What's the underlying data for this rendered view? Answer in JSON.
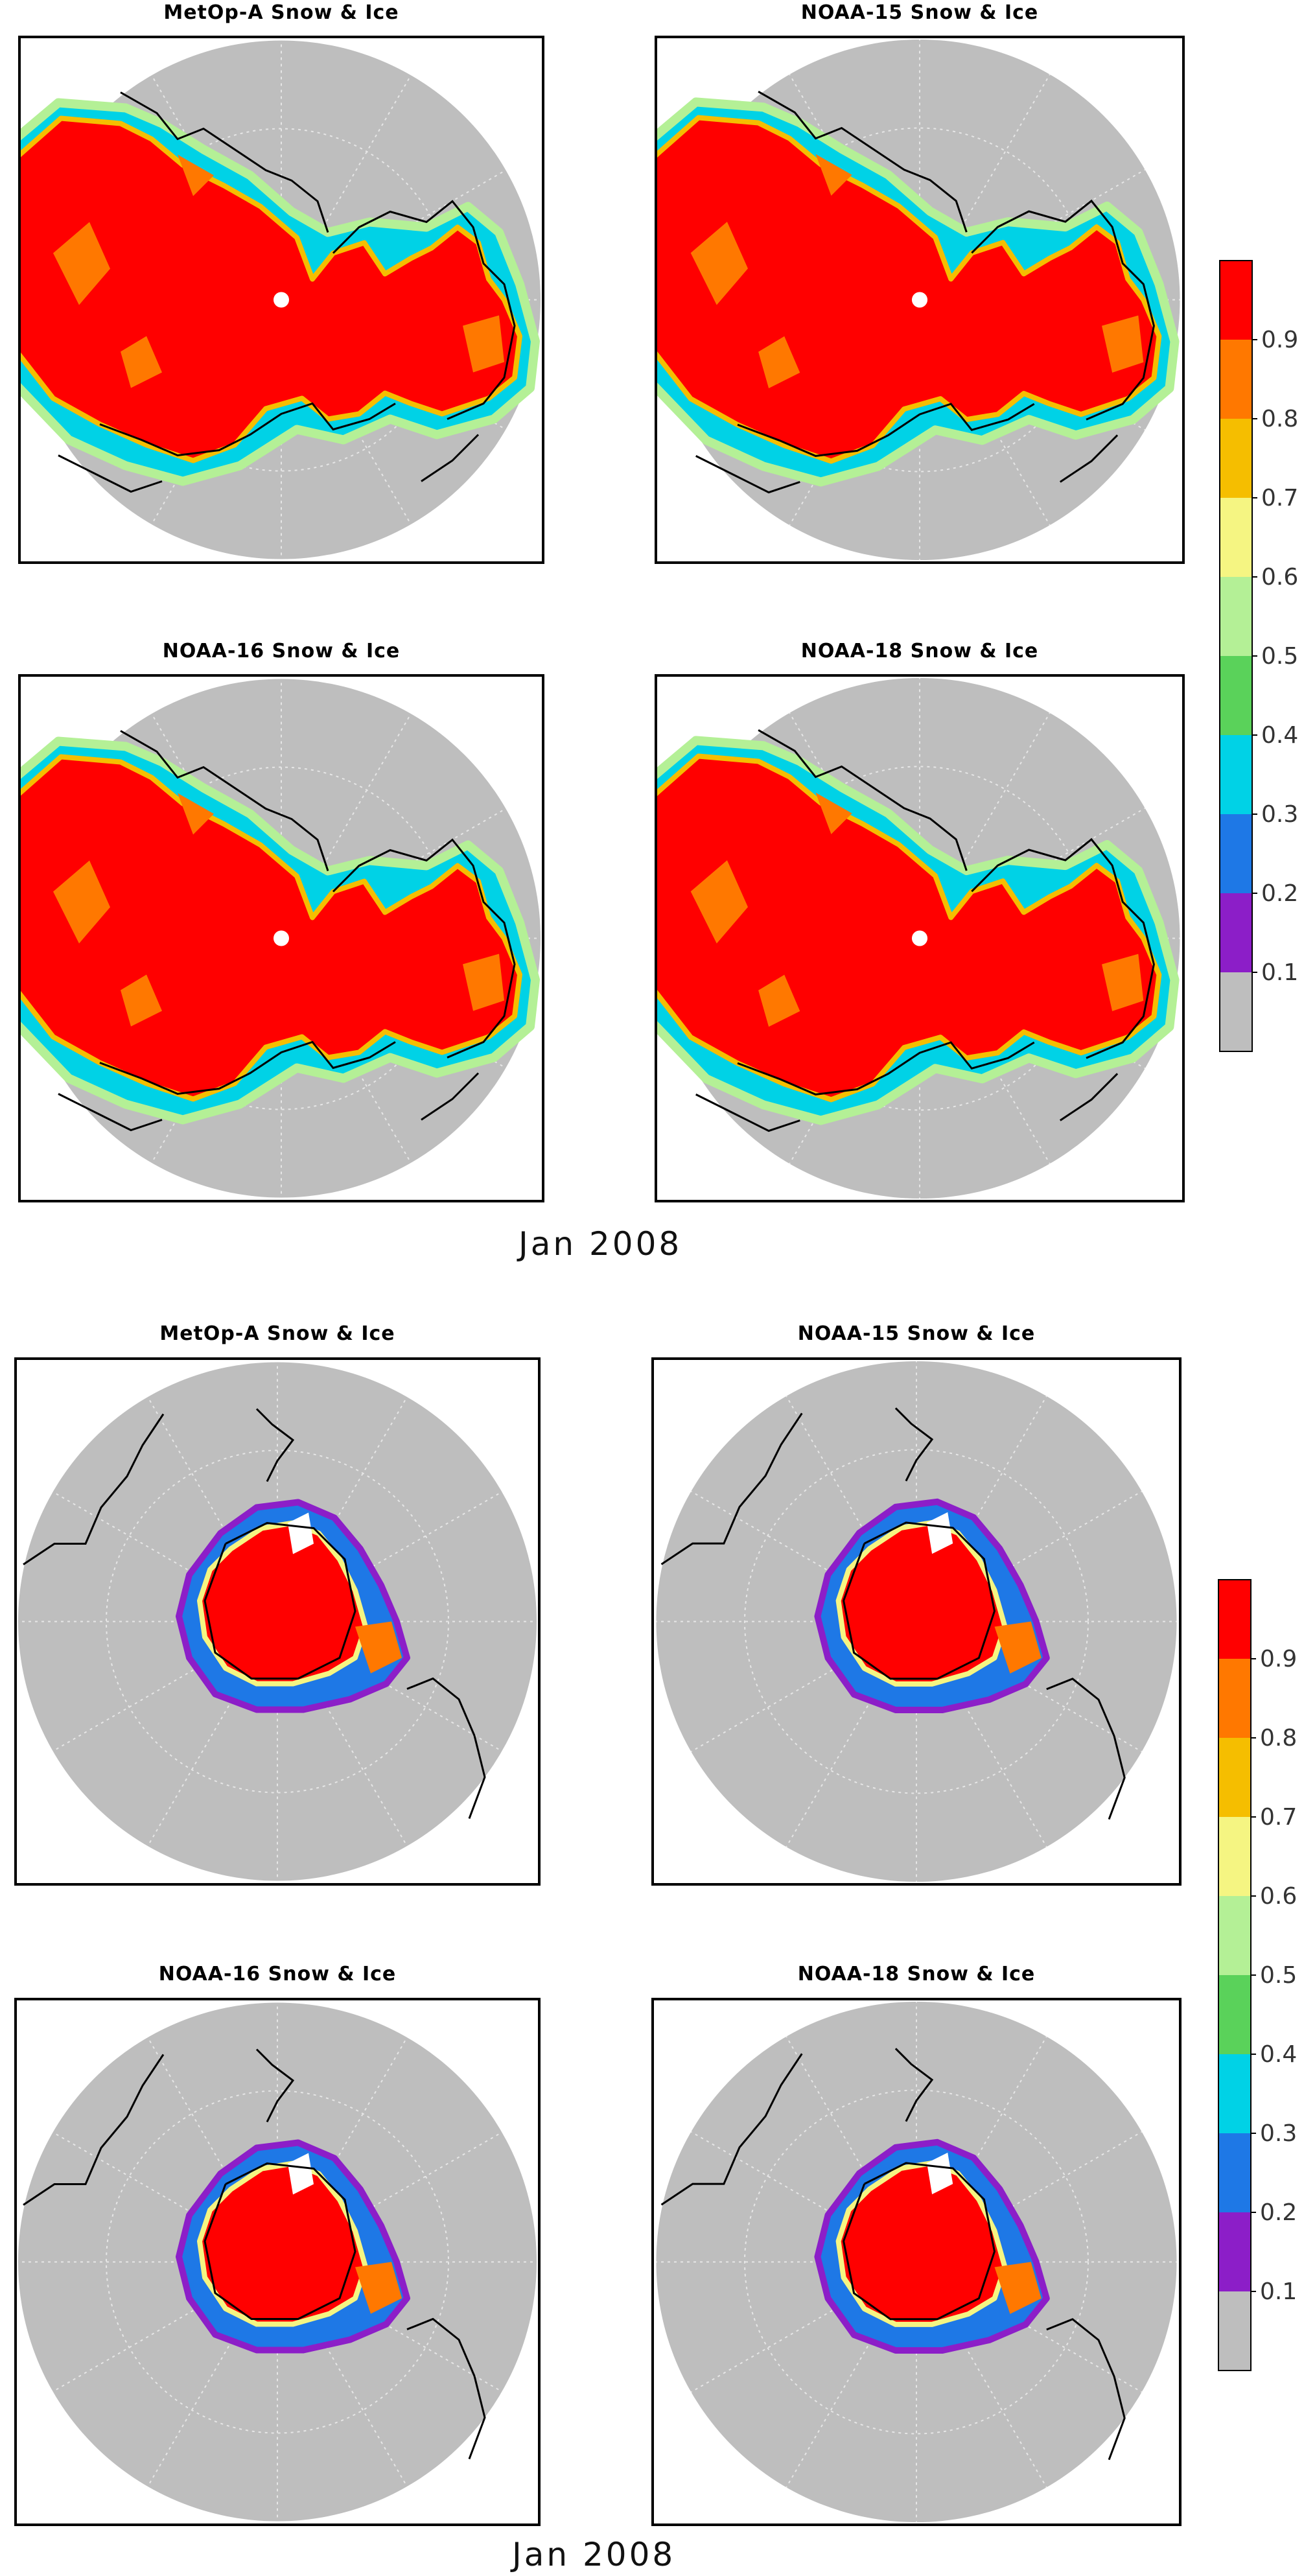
{
  "sections": [
    {
      "hemisphere": "north",
      "date_label": "Jan 2008",
      "panels": [
        {
          "title": "MetOp-A Snow & Ice"
        },
        {
          "title": "NOAA-15 Snow & Ice"
        },
        {
          "title": "NOAA-16 Snow & Ice"
        },
        {
          "title": "NOAA-18 Snow & Ice"
        }
      ]
    },
    {
      "hemisphere": "south",
      "date_label": "Jan 2008",
      "panels": [
        {
          "title": "MetOp-A Snow & Ice"
        },
        {
          "title": "NOAA-15 Snow & Ice"
        },
        {
          "title": "NOAA-16 Snow & Ice"
        },
        {
          "title": "NOAA-18 Snow & Ice"
        }
      ]
    }
  ],
  "colorbar": {
    "tick_labels": [
      "0.9",
      "0.8",
      "0.7",
      "0.6",
      "0.5",
      "0.4",
      "0.3",
      "0.2",
      "0.1"
    ],
    "colors": [
      "#bebebe",
      "#8c1ec8",
      "#1e78e6",
      "#00d2e6",
      "#5ad25a",
      "#b4f096",
      "#f5f582",
      "#f5be00",
      "#ff7800",
      "#ff0000"
    ]
  },
  "map_colors": {
    "ocean_disk": "#bebebe",
    "snow_ice": "#ff0000",
    "coastline": "#000000",
    "graticule": "#e6e6e6"
  }
}
